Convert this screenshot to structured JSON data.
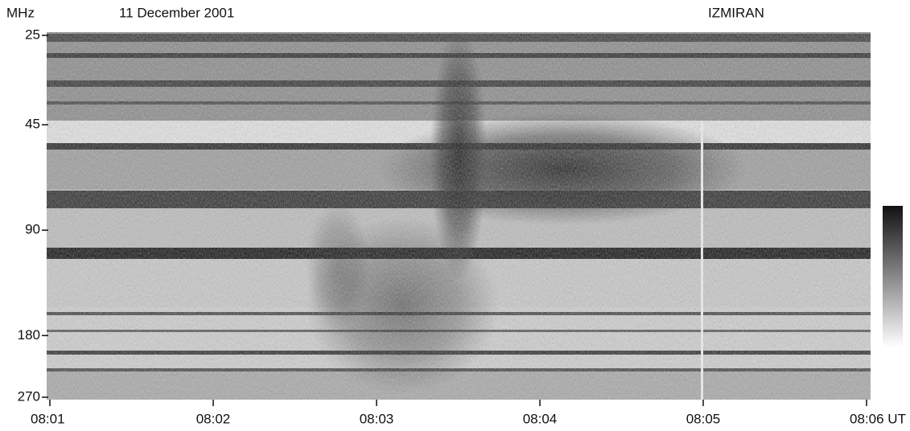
{
  "chart_data": {
    "type": "spectrogram",
    "title": "11 December 2001",
    "y_label": "MHz",
    "annotation": "IZMIRAN",
    "categories": [
      "08:01",
      "08:02",
      "08:03",
      "08:04",
      "08:05",
      "08:06 UT"
    ],
    "ylim": [
      25,
      270
    ],
    "yticks": [
      25,
      45,
      90,
      180,
      270
    ],
    "log_scale": true,
    "y_inverted": true,
    "grid": false,
    "colorbar": true
  }
}
